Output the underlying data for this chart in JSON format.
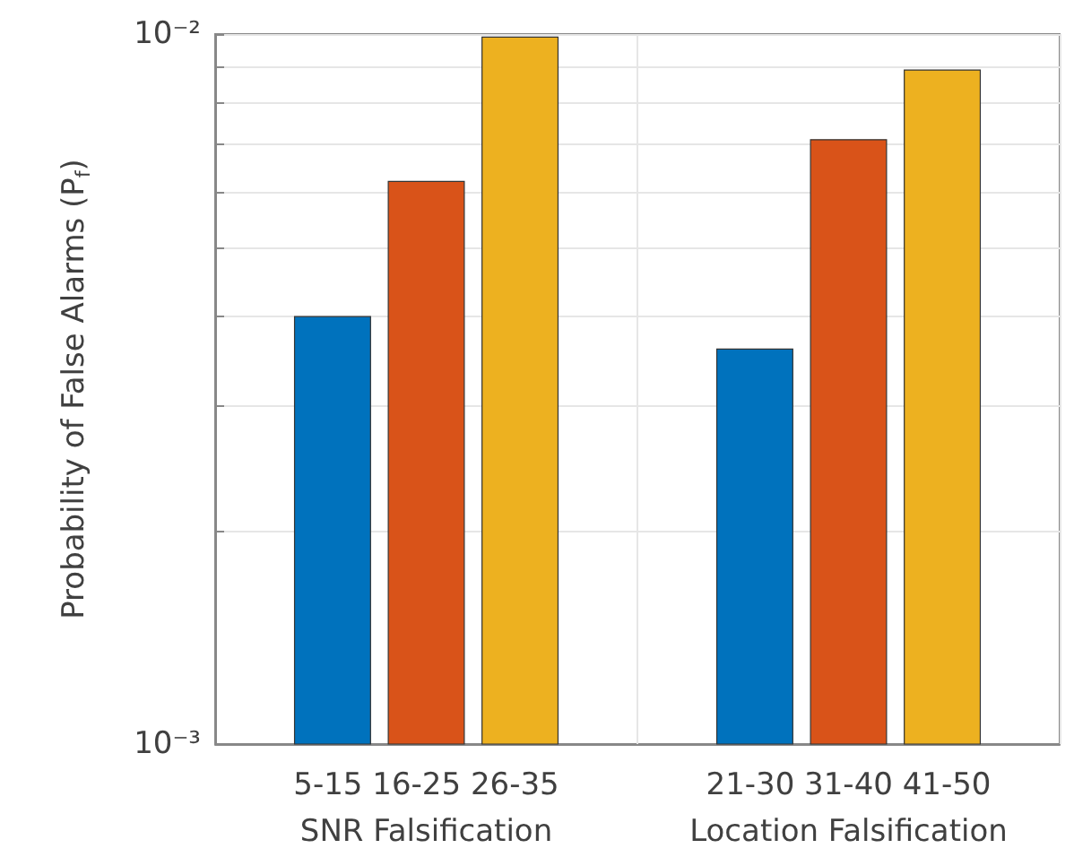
{
  "chart_data": {
    "type": "bar",
    "ylabel": "Probability of False Alarms (P$_{f}$)",
    "categories": [
      "5-15 16-25 26-35\nSNR Falsification",
      "21-30 31-40 41-50\nLocation Falsification"
    ],
    "series": [
      {
        "color": "#0072bd",
        "values": [
          0.004,
          0.0036
        ]
      },
      {
        "color": "#d95319",
        "values": [
          0.0062,
          0.0071
        ]
      },
      {
        "color": "#edb120",
        "values": [
          0.0099,
          0.0089
        ]
      }
    ],
    "log": true,
    "ylim": [
      0.001,
      0.01
    ],
    "yticks": [
      {
        "value": 0.001,
        "label": "10⁻³"
      },
      {
        "value": 0.002,
        "label": null
      },
      {
        "value": 0.003,
        "label": null
      },
      {
        "value": 0.004,
        "label": null
      },
      {
        "value": 0.005,
        "label": null
      },
      {
        "value": 0.006,
        "label": null
      },
      {
        "value": 0.007,
        "label": null
      },
      {
        "value": 0.008,
        "label": null
      },
      {
        "value": 0.009,
        "label": null
      },
      {
        "value": 0.01,
        "label": "10⁻²"
      }
    ],
    "grid": true
  }
}
